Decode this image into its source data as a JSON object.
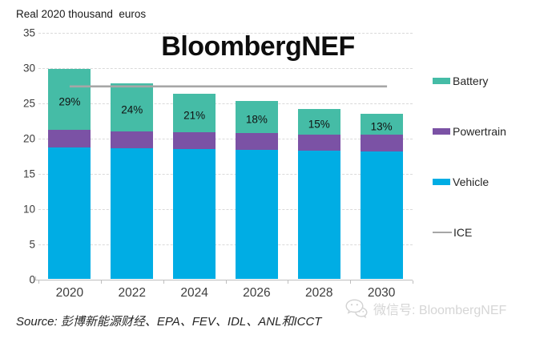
{
  "header": {
    "unit_note": "Real 2020 thousand  euros",
    "title": "BloombergNEF"
  },
  "footer": {
    "source": "Source: 彭博新能源财经、EPA、FEV、IDL、ANL和ICCT",
    "watermark": "微信号: BloombergNEF"
  },
  "colors": {
    "battery": "#45BCA6",
    "powertrain": "#7B52A5",
    "vehicle": "#00ADE4",
    "ice": "#A6A6A6",
    "gridline": "#DADADA",
    "axis": "#BFBFBF"
  },
  "legend": {
    "items": [
      {
        "label": "Battery",
        "type": "rect",
        "color": "#45BCA6"
      },
      {
        "label": "Powertrain",
        "type": "rect",
        "color": "#7B52A5"
      },
      {
        "label": "Vehicle",
        "type": "rect",
        "color": "#00ADE4"
      },
      {
        "label": "ICE",
        "type": "line",
        "color": "#A6A6A6"
      }
    ]
  },
  "chart_data": {
    "type": "bar",
    "subtype": "stacked-bars-with-line-overlay",
    "title": "BloombergNEF",
    "unit_label": "Real 2020 thousand euros",
    "categories": [
      "2020",
      "2022",
      "2024",
      "2026",
      "2028",
      "2030"
    ],
    "series": [
      {
        "name": "Vehicle",
        "color": "#00ADE4",
        "values": [
          18.7,
          18.6,
          18.5,
          18.4,
          18.3,
          18.2
        ]
      },
      {
        "name": "Powertrain",
        "color": "#7B52A5",
        "values": [
          2.5,
          2.4,
          2.4,
          2.4,
          2.3,
          2.3
        ]
      },
      {
        "name": "Battery",
        "color": "#45BCA6",
        "values": [
          8.7,
          6.8,
          5.5,
          4.5,
          3.6,
          3.0
        ]
      }
    ],
    "stack_totals": [
      29.9,
      27.8,
      26.4,
      25.3,
      24.2,
      23.5
    ],
    "bar_labels": [
      "29%",
      "24%",
      "21%",
      "18%",
      "15%",
      "13%"
    ],
    "bar_label_series": "Battery share of total",
    "line_series": {
      "name": "ICE",
      "color": "#A6A6A6",
      "values": [
        27.4,
        27.4,
        27.4,
        27.4,
        27.4,
        27.4
      ]
    },
    "ylim": [
      0,
      35
    ],
    "yticks": [
      0,
      5,
      10,
      15,
      20,
      25,
      30,
      35
    ],
    "grid": "horizontal-dashed",
    "legend_position": "right"
  }
}
